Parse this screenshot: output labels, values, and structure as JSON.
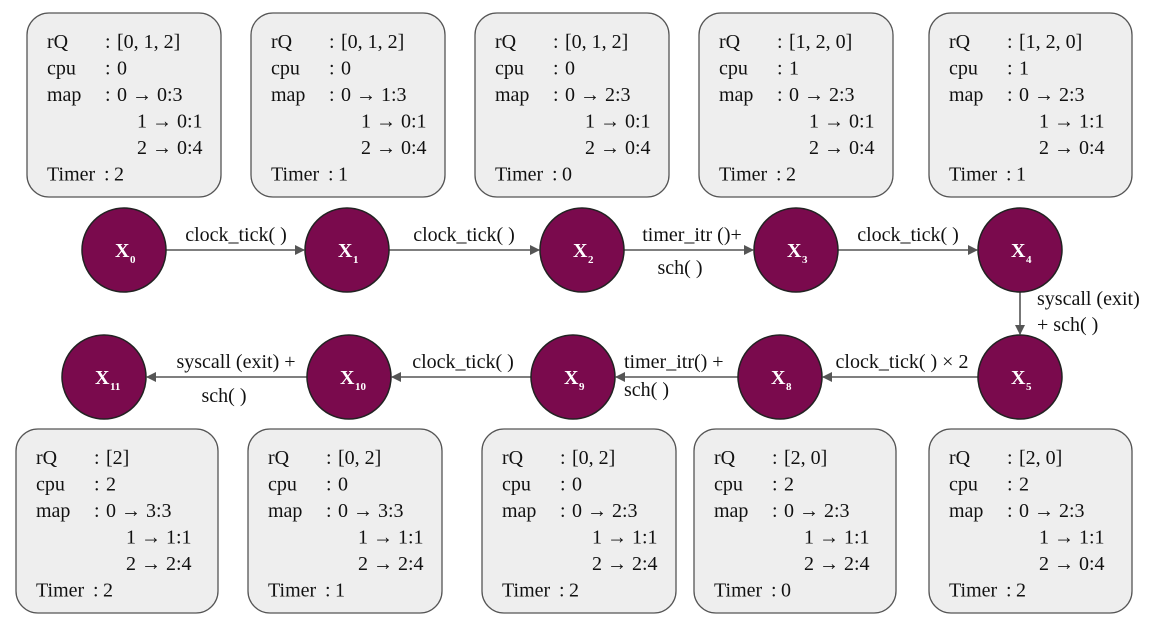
{
  "states": [
    {
      "id": "x0",
      "name": "X",
      "sub": "0",
      "rq": "[0, 1, 2]",
      "cpu": "0",
      "map": [
        "0 → 0:3",
        "1 → 0:1",
        "2 → 0:4"
      ],
      "timer": "2"
    },
    {
      "id": "x1",
      "name": "X",
      "sub": "1",
      "rq": "[0, 1, 2]",
      "cpu": "0",
      "map": [
        "0 → 1:3",
        "1 → 0:1",
        "2 → 0:4"
      ],
      "timer": "1"
    },
    {
      "id": "x2",
      "name": "X",
      "sub": "2",
      "rq": "[0, 1, 2]",
      "cpu": "0",
      "map": [
        "0 → 2:3",
        "1 → 0:1",
        "2 → 0:4"
      ],
      "timer": "0"
    },
    {
      "id": "x3",
      "name": "X",
      "sub": "3",
      "rq": "[1, 2, 0]",
      "cpu": "1",
      "map": [
        "0 → 2:3",
        "1 → 0:1",
        "2 → 0:4"
      ],
      "timer": "2"
    },
    {
      "id": "x4",
      "name": "X",
      "sub": "4",
      "rq": "[1, 2, 0]",
      "cpu": "1",
      "map": [
        "0 → 2:3",
        "1 → 1:1",
        "2 → 0:4"
      ],
      "timer": "1"
    },
    {
      "id": "x5",
      "name": "X",
      "sub": "5",
      "rq": "[2, 0]",
      "cpu": "2",
      "map": [
        "0 → 2:3",
        "1 → 1:1",
        "2 → 0:4"
      ],
      "timer": "2"
    },
    {
      "id": "x8",
      "name": "X",
      "sub": "8",
      "rq": "[2, 0]",
      "cpu": "2",
      "map": [
        "0 → 2:3",
        "1 → 1:1",
        "2 → 2:4"
      ],
      "timer": "0"
    },
    {
      "id": "x9",
      "name": "X",
      "sub": "9",
      "rq": "[0, 2]",
      "cpu": "0",
      "map": [
        "0 → 2:3",
        "1 → 1:1",
        "2 → 2:4"
      ],
      "timer": "2"
    },
    {
      "id": "x10",
      "name": "X",
      "sub": "10",
      "rq": "[0, 2]",
      "cpu": "0",
      "map": [
        "0 → 3:3",
        "1 → 1:1",
        "2 → 2:4"
      ],
      "timer": "1"
    },
    {
      "id": "x11",
      "name": "X",
      "sub": "11",
      "rq": "[2]",
      "cpu": "2",
      "map": [
        "0 → 3:3",
        "1 → 1:1",
        "2 → 2:4"
      ],
      "timer": "2"
    }
  ],
  "field_labels": {
    "rq": "rQ",
    "cpu": "cpu",
    "map": "map",
    "timer": "Timer"
  },
  "separator": ":",
  "transitions": [
    {
      "from": "x0",
      "to": "x1",
      "label": [
        "clock_tick( )"
      ]
    },
    {
      "from": "x1",
      "to": "x2",
      "label": [
        "clock_tick( )"
      ]
    },
    {
      "from": "x2",
      "to": "x3",
      "label": [
        "timer_itr ()+",
        "sch(  )"
      ]
    },
    {
      "from": "x3",
      "to": "x4",
      "label": [
        "clock_tick( )"
      ]
    },
    {
      "from": "x4",
      "to": "x5",
      "label": [
        "syscall (exit)",
        "+  sch( )"
      ]
    },
    {
      "from": "x5",
      "to": "x8",
      "label": [
        "clock_tick( ) × 2"
      ]
    },
    {
      "from": "x8",
      "to": "x9",
      "label": [
        "timer_itr() +",
        "sch( )"
      ]
    },
    {
      "from": "x9",
      "to": "x10",
      "label": [
        "clock_tick( )"
      ]
    },
    {
      "from": "x10",
      "to": "x11",
      "label": [
        "syscall (exit) +",
        "sch(  )"
      ]
    }
  ],
  "colors": {
    "node_fill": "#7a0a4d",
    "box_fill": "#eeeeee",
    "box_stroke": "#555555",
    "edge": "#555555"
  }
}
